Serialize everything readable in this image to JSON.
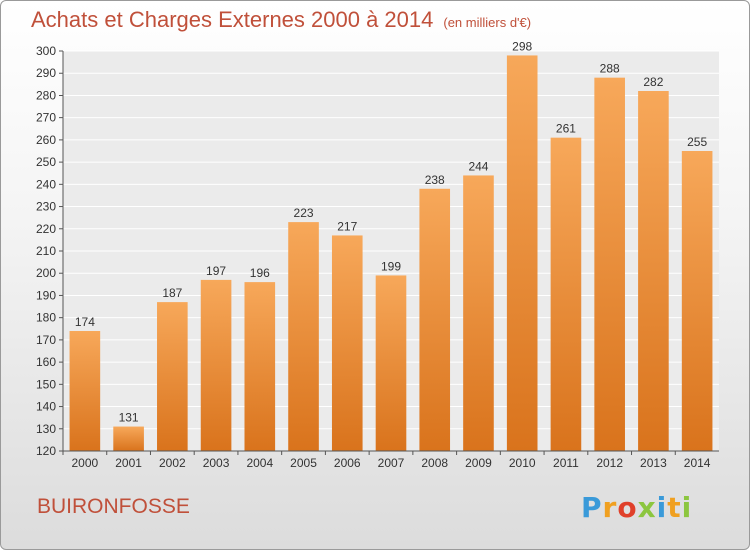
{
  "header": {
    "title": "Achats et Charges Externes 2000 à 2014",
    "subtitle": "(en milliers d'€)"
  },
  "footer": {
    "commune": "BUIRONFOSSE",
    "logo_letters": [
      "P",
      "r",
      "o",
      "x",
      "i",
      "t",
      "i"
    ],
    "logo_colors": [
      "#3a9ad9",
      "#f0a020",
      "#e0402a",
      "#8cc63f",
      "#3a9ad9",
      "#f0a020",
      "#8cc63f"
    ]
  },
  "chart_data": {
    "type": "bar",
    "title": "Achats et Charges Externes 2000 à 2014",
    "subtitle": "(en milliers d'€)",
    "categories": [
      "2000",
      "2001",
      "2002",
      "2003",
      "2004",
      "2005",
      "2006",
      "2007",
      "2008",
      "2009",
      "2010",
      "2011",
      "2012",
      "2013",
      "2014"
    ],
    "values": [
      174,
      131,
      187,
      197,
      196,
      223,
      217,
      199,
      238,
      244,
      298,
      261,
      288,
      282,
      255
    ],
    "ylim": [
      120,
      300
    ],
    "yticks": [
      120,
      130,
      140,
      150,
      160,
      170,
      180,
      190,
      200,
      210,
      220,
      230,
      240,
      250,
      260,
      270,
      280,
      290,
      300
    ],
    "grid": true,
    "bar_color_top": "#f7a85a",
    "bar_color_bottom": "#d9731c",
    "data_labels": true
  }
}
